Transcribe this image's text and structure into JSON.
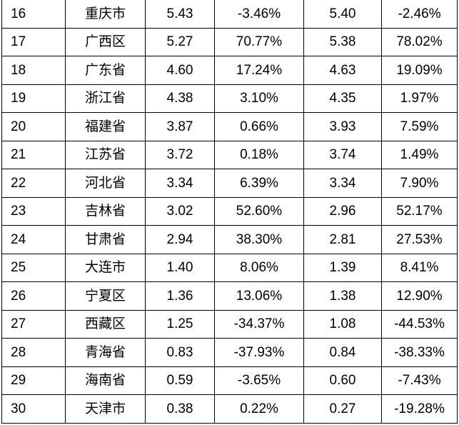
{
  "table": {
    "rows": [
      {
        "rank": "16",
        "name": "重庆市",
        "v1": "5.43",
        "p1": "-3.46%",
        "v2": "5.40",
        "p2": "-2.46%"
      },
      {
        "rank": "17",
        "name": "广西区",
        "v1": "5.27",
        "p1": "70.77%",
        "v2": "5.38",
        "p2": "78.02%"
      },
      {
        "rank": "18",
        "name": "广东省",
        "v1": "4.60",
        "p1": "17.24%",
        "v2": "4.63",
        "p2": "19.09%"
      },
      {
        "rank": "19",
        "name": "浙江省",
        "v1": "4.38",
        "p1": "3.10%",
        "v2": "4.35",
        "p2": "1.97%"
      },
      {
        "rank": "20",
        "name": "福建省",
        "v1": "3.87",
        "p1": "0.66%",
        "v2": "3.93",
        "p2": "7.59%"
      },
      {
        "rank": "21",
        "name": "江苏省",
        "v1": "3.72",
        "p1": "0.18%",
        "v2": "3.74",
        "p2": "1.49%"
      },
      {
        "rank": "22",
        "name": "河北省",
        "v1": "3.34",
        "p1": "6.39%",
        "v2": "3.34",
        "p2": "7.90%"
      },
      {
        "rank": "23",
        "name": "吉林省",
        "v1": "3.02",
        "p1": "52.60%",
        "v2": "2.96",
        "p2": "52.17%"
      },
      {
        "rank": "24",
        "name": "甘肃省",
        "v1": "2.94",
        "p1": "38.30%",
        "v2": "2.81",
        "p2": "27.53%"
      },
      {
        "rank": "25",
        "name": "大连市",
        "v1": "1.40",
        "p1": "8.06%",
        "v2": "1.39",
        "p2": "8.41%"
      },
      {
        "rank": "26",
        "name": "宁夏区",
        "v1": "1.36",
        "p1": "13.06%",
        "v2": "1.38",
        "p2": "12.90%"
      },
      {
        "rank": "27",
        "name": "西藏区",
        "v1": "1.25",
        "p1": "-34.37%",
        "v2": "1.08",
        "p2": "-44.53%"
      },
      {
        "rank": "28",
        "name": "青海省",
        "v1": "0.83",
        "p1": "-37.93%",
        "v2": "0.84",
        "p2": "-38.33%"
      },
      {
        "rank": "29",
        "name": "海南省",
        "v1": "0.59",
        "p1": "-3.65%",
        "v2": "0.60",
        "p2": "-7.43%"
      },
      {
        "rank": "30",
        "name": "天津市",
        "v1": "0.38",
        "p1": "0.22%",
        "v2": "0.27",
        "p2": "-19.28%"
      }
    ]
  }
}
